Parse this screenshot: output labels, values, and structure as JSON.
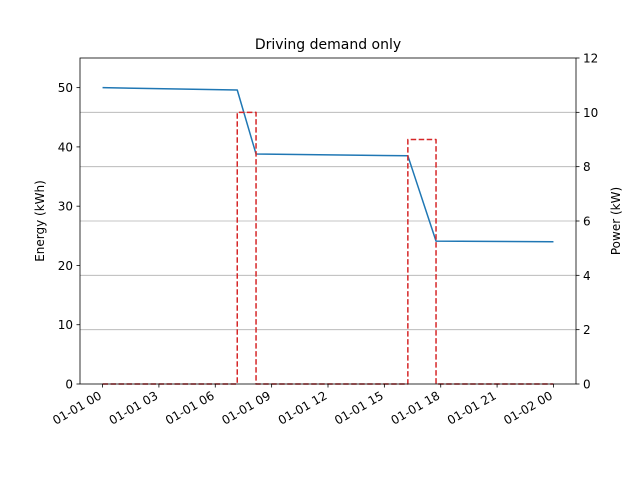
{
  "chart_data": {
    "type": "line",
    "title": "Driving demand only",
    "xlabel": "",
    "ylabel_left": "Energy (kWh)",
    "ylabel_right": "Power (kW)",
    "x_ticks": [
      "01-01 00",
      "01-01 03",
      "01-01 06",
      "01-01 09",
      "01-01 12",
      "01-01 15",
      "01-01 18",
      "01-01 21",
      "01-02 00"
    ],
    "x_range_hours": [
      -1.2,
      25.2
    ],
    "ylim_left": [
      0,
      55
    ],
    "yticks_left": [
      0,
      10,
      20,
      30,
      40,
      50
    ],
    "ylim_right": [
      0,
      12
    ],
    "yticks_right": [
      0,
      2,
      4,
      6,
      8,
      10,
      12
    ],
    "grid": "horizontal lines at right-axis ticks",
    "series": [
      {
        "axis": "left",
        "color": "#1f77b4",
        "style": "solid",
        "x_hours": [
          0,
          7.17,
          8.17,
          16.25,
          17.75,
          24
        ],
        "y": [
          50.0,
          49.6,
          38.8,
          38.5,
          24.1,
          24.0
        ]
      },
      {
        "axis": "right",
        "color": "#d62728",
        "style": "dashed",
        "x_hours": [
          0,
          7.17,
          7.17,
          8.17,
          8.17,
          16.25,
          16.25,
          17.75,
          17.75,
          24
        ],
        "y": [
          0,
          0,
          10,
          10,
          0,
          0,
          9,
          9,
          0,
          0
        ]
      }
    ]
  }
}
